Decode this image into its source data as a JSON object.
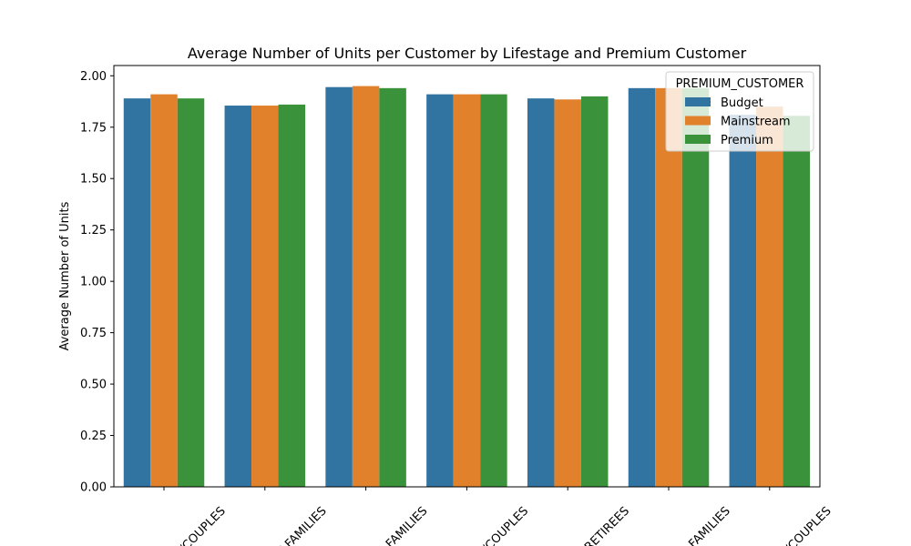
{
  "chart_data": {
    "type": "bar",
    "title": "Average Number of Units per Customer by Lifestage and Premium Customer",
    "xlabel": "",
    "ylabel": "Average Number of Units",
    "ylim": [
      0,
      2.05
    ],
    "yticks": [
      0.0,
      0.25,
      0.5,
      0.75,
      1.0,
      1.25,
      1.5,
      1.75,
      2.0
    ],
    "ytick_labels": [
      "0.00",
      "0.25",
      "0.50",
      "0.75",
      "1.00",
      "1.25",
      "1.50",
      "1.75",
      "2.00"
    ],
    "categories": [
      "S/COUPLES",
      "W FAMILIES",
      "R FAMILIES",
      "S/COUPLES",
      "RETIREES",
      "G FAMILIES",
      "S/COUPLES"
    ],
    "series": [
      {
        "name": "Budget",
        "color": "#3274a1",
        "values": [
          1.89,
          1.855,
          1.945,
          1.91,
          1.89,
          1.94,
          1.81
        ]
      },
      {
        "name": "Mainstream",
        "color": "#e1812c",
        "values": [
          1.91,
          1.855,
          1.95,
          1.91,
          1.885,
          1.94,
          1.85
        ]
      },
      {
        "name": "Premium",
        "color": "#3a923a",
        "values": [
          1.89,
          1.86,
          1.94,
          1.91,
          1.9,
          1.94,
          1.805
        ]
      }
    ],
    "legend": {
      "title": "PREMIUM_CUSTOMER",
      "position": "top-right"
    },
    "grid": false,
    "xtick_rotation": 45
  }
}
